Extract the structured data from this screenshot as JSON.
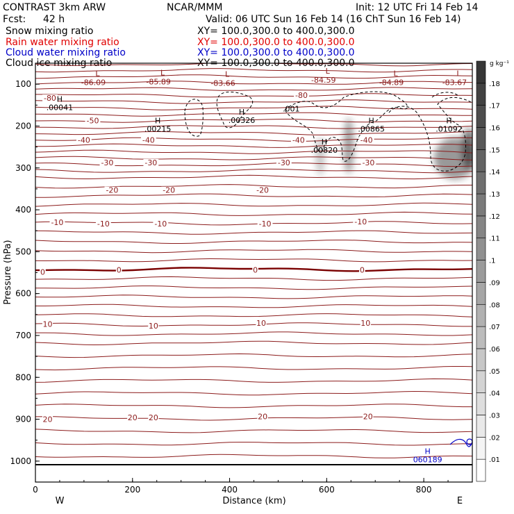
{
  "header": {
    "model": "CONTRAST   3km ARW",
    "org": "NCAR/MMM",
    "init": "Init: 12 UTC Fri 14 Feb 14",
    "fcst_label": "Fcst:",
    "fcst_value": "42 h",
    "valid": "Valid: 06 UTC Sun 16 Feb 14 (16 ChT Sun 16 Feb 14)",
    "fields": [
      {
        "name": "Snow mixing ratio",
        "xy": "XY=  100.0,300.0  to  400.0,300.0",
        "color": "#000000"
      },
      {
        "name": "Rain water mixing ratio",
        "xy": "XY=  100.0,300.0  to  400.0,300.0",
        "color": "#e00000"
      },
      {
        "name": "Cloud water mixing ratio",
        "xy": "XY=  100.0,300.0  to  400.0,300.0",
        "color": "#0000c8"
      },
      {
        "name": "Cloud ice mixing ratio",
        "xy": "XY=  100.0,300.0  to  400.0,300.0",
        "color": "#000000"
      }
    ]
  },
  "chart_data": {
    "type": "contour",
    "xlabel": "Distance (km)",
    "ylabel": "Pressure (hPa)",
    "xlim": [
      0,
      900
    ],
    "ylim": [
      1050,
      50
    ],
    "x_ticks": [
      0,
      200,
      400,
      600,
      800
    ],
    "y_ticks": [
      100,
      200,
      300,
      400,
      500,
      600,
      700,
      800,
      900,
      1000
    ],
    "x_end_labels": {
      "left": "W",
      "right": "E"
    },
    "colorbar": {
      "unit": "g kg⁻¹",
      "levels": [
        ".01",
        ".02",
        ".03",
        ".04",
        ".05",
        ".06",
        ".07",
        ".08",
        ".09",
        ".1",
        ".11",
        ".12",
        ".13",
        ".14",
        ".15",
        ".16",
        ".17",
        ".18"
      ]
    },
    "temperature_labels": [
      {
        "value": "-80",
        "x": 30,
        "p": 133
      },
      {
        "value": "-80",
        "x": 548,
        "p": 126
      },
      {
        "value": "-50",
        "x": 118,
        "p": 187
      },
      {
        "value": "-40",
        "x": 100,
        "p": 233
      },
      {
        "value": "-40",
        "x": 233,
        "p": 233
      },
      {
        "value": "-40",
        "x": 542,
        "p": 233
      },
      {
        "value": "-40",
        "x": 682,
        "p": 233
      },
      {
        "value": "-30",
        "x": 148,
        "p": 287
      },
      {
        "value": "-30",
        "x": 238,
        "p": 287
      },
      {
        "value": "-30",
        "x": 512,
        "p": 287
      },
      {
        "value": "-30",
        "x": 686,
        "p": 287
      },
      {
        "value": "-20",
        "x": 158,
        "p": 353
      },
      {
        "value": "-20",
        "x": 275,
        "p": 353
      },
      {
        "value": "-20",
        "x": 468,
        "p": 353
      },
      {
        "value": "-10",
        "x": 45,
        "p": 430
      },
      {
        "value": "-10",
        "x": 140,
        "p": 433
      },
      {
        "value": "-10",
        "x": 258,
        "p": 433
      },
      {
        "value": "-10",
        "x": 473,
        "p": 433
      },
      {
        "value": "-10",
        "x": 670,
        "p": 428
      },
      {
        "value": "0",
        "x": 15,
        "p": 548
      },
      {
        "value": "0",
        "x": 172,
        "p": 543
      },
      {
        "value": "0",
        "x": 453,
        "p": 543
      },
      {
        "value": "0",
        "x": 673,
        "p": 543
      },
      {
        "value": "10",
        "x": 25,
        "p": 673
      },
      {
        "value": "10",
        "x": 243,
        "p": 677
      },
      {
        "value": "10",
        "x": 465,
        "p": 670
      },
      {
        "value": "10",
        "x": 680,
        "p": 670
      },
      {
        "value": "20",
        "x": 25,
        "p": 900
      },
      {
        "value": "20",
        "x": 200,
        "p": 896
      },
      {
        "value": "20",
        "x": 243,
        "p": 896
      },
      {
        "value": "20",
        "x": 468,
        "p": 893
      },
      {
        "value": "20",
        "x": 685,
        "p": 893
      }
    ],
    "low_labels": [
      {
        "letter": "L",
        "value": "-86.09",
        "x": 128,
        "p": 74
      },
      {
        "letter": "L",
        "value": "-85.89",
        "x": 262,
        "p": 72
      },
      {
        "letter": "L",
        "value": "-83.66",
        "x": 395,
        "p": 76
      },
      {
        "letter": "L",
        "value": "-84.59",
        "x": 602,
        "p": 68
      },
      {
        "letter": "L",
        "value": "-84.89",
        "x": 742,
        "p": 74
      },
      {
        "letter": "L",
        "value": "-83.67",
        "x": 872,
        "p": 74
      }
    ],
    "high_labels": [
      {
        "letter": "H",
        "value": ".00041",
        "x": 50,
        "p": 135,
        "color": "#000000"
      },
      {
        "letter": "H",
        "value": ".00215",
        "x": 252,
        "p": 187,
        "color": "#000000"
      },
      {
        "letter": "H",
        "value": ".00326",
        "x": 425,
        "p": 166,
        "color": "#000000"
      },
      {
        "letter": "H",
        "value": ".00865",
        "x": 692,
        "p": 187,
        "color": "#000000"
      },
      {
        "letter": "H",
        "value": ".01092",
        "x": 852,
        "p": 187,
        "color": "#000000"
      },
      {
        "letter": "H",
        "value": ".00820",
        "x": 595,
        "p": 237,
        "color": "#000000"
      },
      {
        "letter": "H",
        "value": "060189",
        "x": 808,
        "p": 976,
        "color": "#0000c8"
      }
    ],
    "dashed_labels": [
      {
        "value": ".001",
        "x": 527,
        "p": 159
      }
    ]
  }
}
